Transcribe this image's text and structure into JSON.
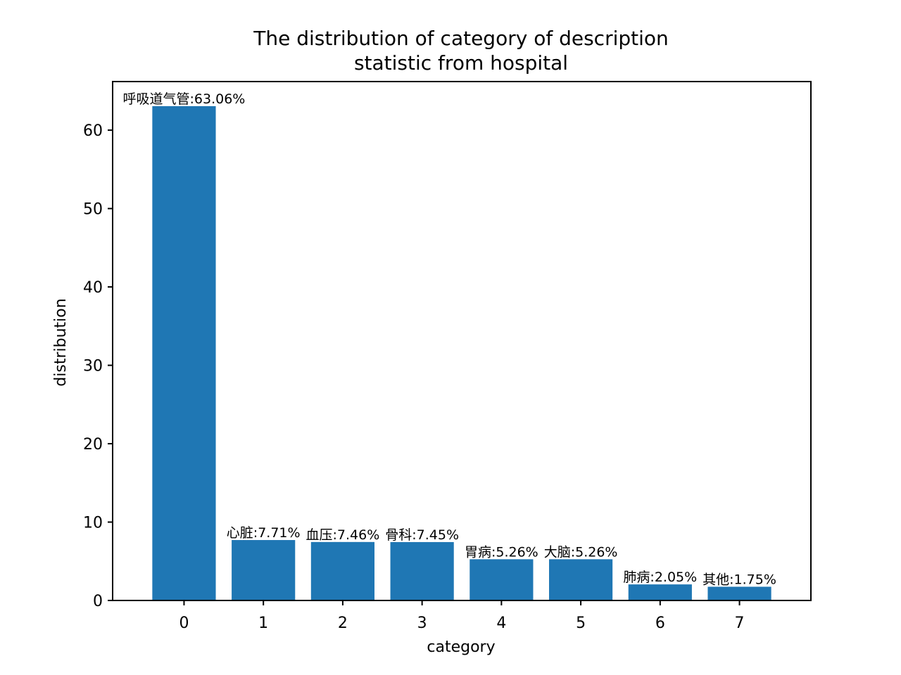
{
  "chart_data": {
    "type": "bar",
    "title_lines": [
      "The distribution of category of description",
      "statistic from hospital"
    ],
    "xlabel": "category",
    "ylabel": "distribution",
    "categories": [
      "0",
      "1",
      "2",
      "3",
      "4",
      "5",
      "6",
      "7"
    ],
    "values": [
      63.06,
      7.71,
      7.46,
      7.45,
      5.26,
      5.26,
      2.05,
      1.75
    ],
    "labels": [
      "呼吸道气管:63.06%",
      "心脏:7.71%",
      "血压:7.46%",
      "骨科:7.45%",
      "胃病:5.26%",
      "大脑:5.26%",
      "肺病:2.05%",
      "其他:1.75%"
    ],
    "xlim": [
      -0.9,
      7.9
    ],
    "ylim": [
      0,
      66.2
    ],
    "yticks": [
      0,
      10,
      20,
      30,
      40,
      50,
      60
    ],
    "grid": false,
    "bar_color": "#1f77b4"
  }
}
